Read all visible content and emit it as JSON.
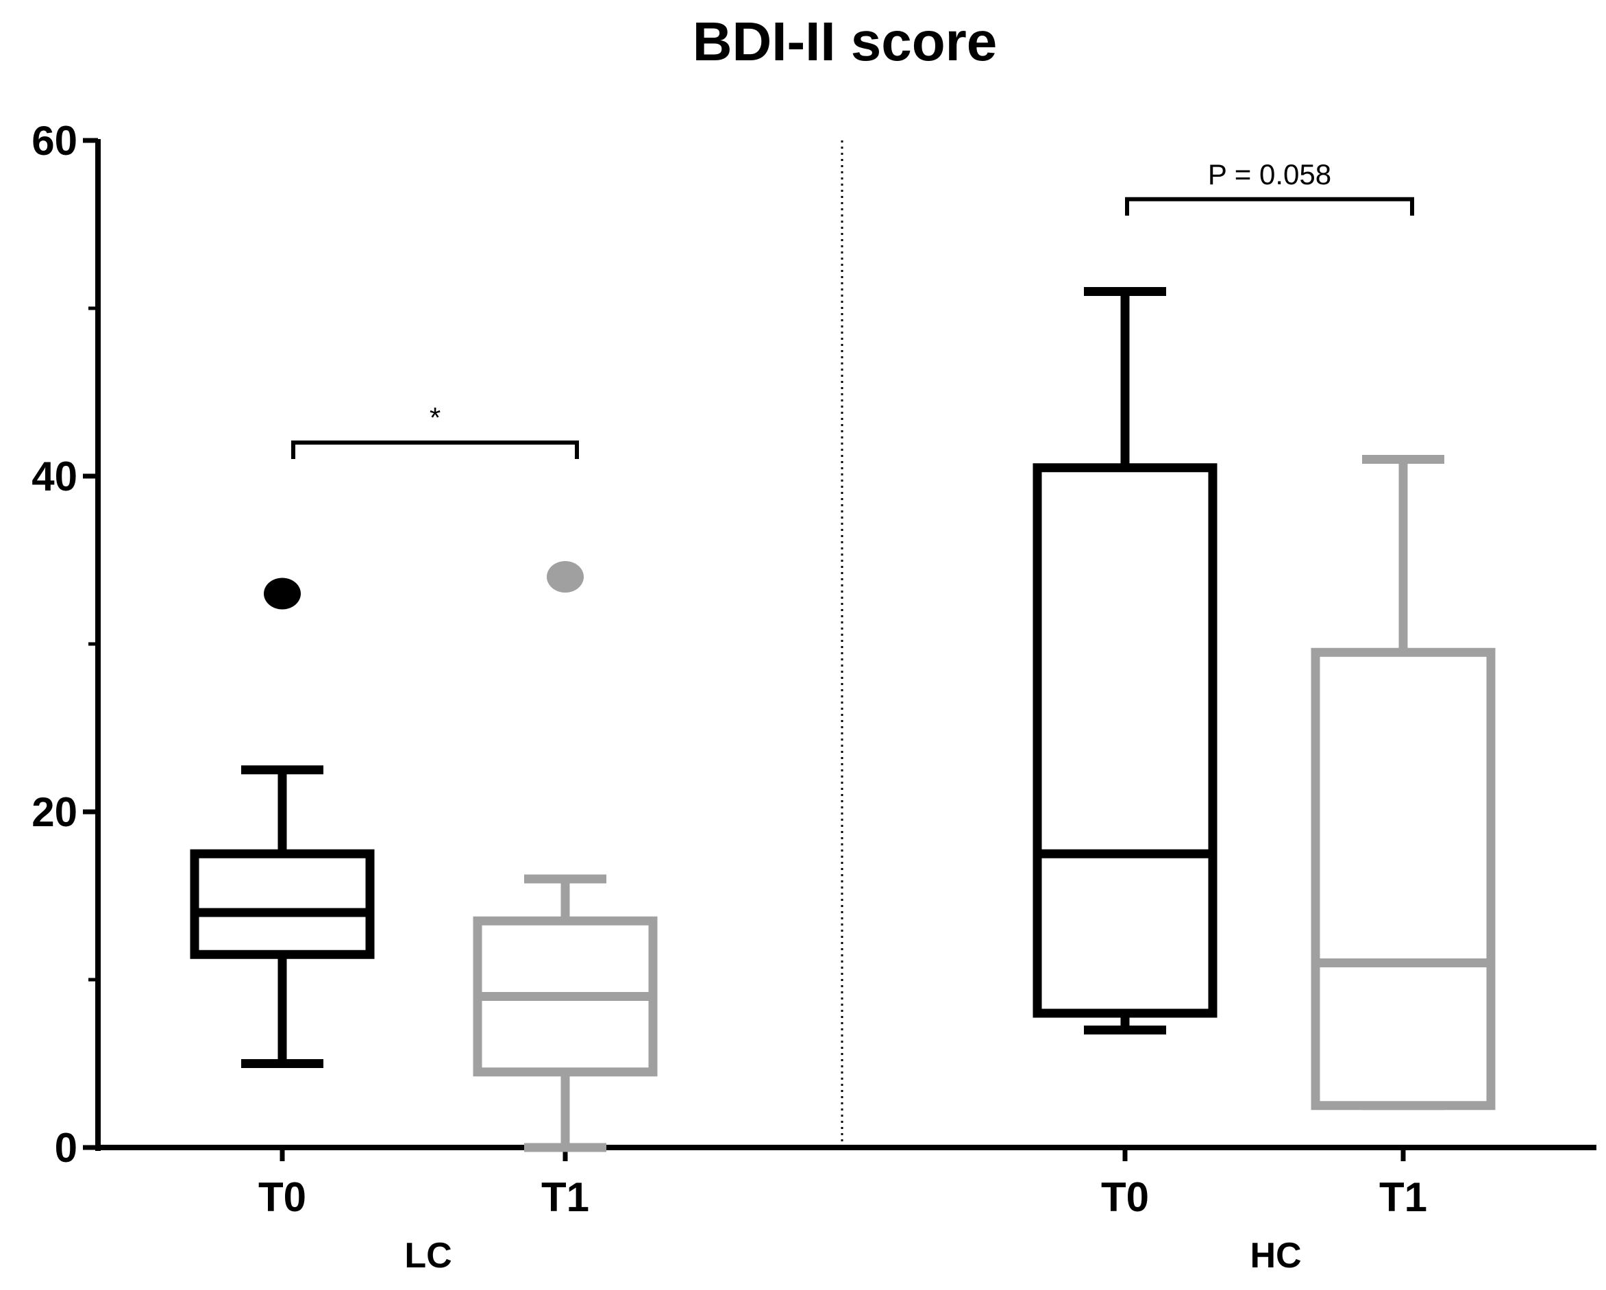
{
  "chart_data": {
    "type": "box",
    "title": "BDI-II score",
    "xlabel": "",
    "ylabel": "",
    "ylim": [
      0,
      60
    ],
    "yticks": [
      0,
      20,
      40,
      60
    ],
    "yticks_minor": [
      10,
      30,
      50
    ],
    "groups": [
      {
        "name": "LC",
        "boxes": [
          {
            "label": "T0",
            "color": "#000000",
            "min": 5,
            "q1": 11.5,
            "median": 14,
            "q3": 17.5,
            "max": 22.5,
            "outliers": [
              33
            ]
          },
          {
            "label": "T1",
            "color": "#a0a0a0",
            "min": 0,
            "q1": 4.5,
            "median": 9,
            "q3": 13.5,
            "max": 16,
            "outliers": [
              34
            ]
          }
        ],
        "comparison": {
          "label": "*",
          "y": 42
        }
      },
      {
        "name": "HC",
        "boxes": [
          {
            "label": "T0",
            "color": "#000000",
            "min": 7,
            "q1": 8,
            "median": 17.5,
            "q3": 40.5,
            "max": 51,
            "outliers": []
          },
          {
            "label": "T1",
            "color": "#a0a0a0",
            "min": 2.5,
            "q1": 2.5,
            "median": 11,
            "q3": 29.5,
            "max": 41,
            "outliers": []
          }
        ],
        "comparison": {
          "label": "P = 0.058",
          "y": 56.5
        }
      }
    ]
  }
}
